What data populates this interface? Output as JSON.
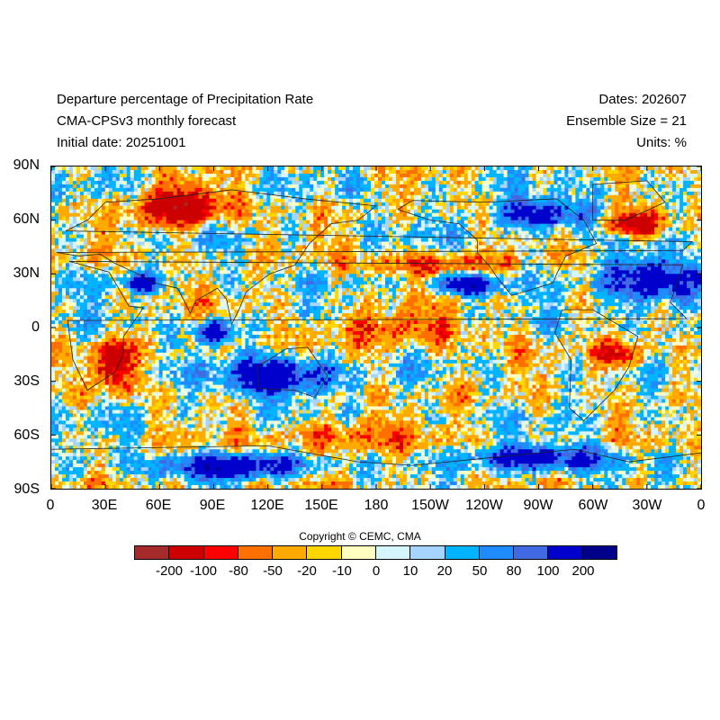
{
  "header": {
    "title": "Departure percentage of Precipitation Rate",
    "model": "CMA-CPSv3 monthly forecast",
    "initial_date": "Initial date: 20251001",
    "dates": "Dates: 202607",
    "ensemble": "Ensemble Size = 21",
    "units": "Units: %"
  },
  "map": {
    "projection": "cylindrical equidistant",
    "lon_range": [
      0,
      360
    ],
    "lat_range": [
      -90,
      90
    ],
    "y_ticks": [
      "90N",
      "60N",
      "30N",
      "0",
      "30S",
      "60S",
      "90S"
    ],
    "x_ticks": [
      "0",
      "30E",
      "60E",
      "90E",
      "120E",
      "150E",
      "180",
      "150W",
      "120W",
      "90W",
      "60W",
      "30W",
      "0"
    ]
  },
  "copyright": "Copyright © CEMC, CMA",
  "colorbar": {
    "colors": [
      "#a52a2a",
      "#cc0000",
      "#ff0000",
      "#ff7000",
      "#ffaa00",
      "#ffd700",
      "#ffffc0",
      "#d5f5ff",
      "#a5d5ff",
      "#00b4ff",
      "#1e8cff",
      "#4169e1",
      "#0000cd",
      "#00008b"
    ],
    "labels": [
      "-200",
      "-100",
      "-80",
      "-50",
      "-20",
      "-10",
      "0",
      "10",
      "20",
      "50",
      "80",
      "100",
      "200"
    ]
  },
  "chart_data": {
    "type": "heatmap",
    "variable": "Departure percentage of Precipitation Rate",
    "units": "%",
    "levels": [
      -200,
      -100,
      -80,
      -50,
      -20,
      -10,
      0,
      10,
      20,
      50,
      80,
      100,
      200
    ],
    "x": "longitude 0–360 (0, 30E ... 30W, 0)",
    "y": "latitude 90S–90N",
    "regions": [
      {
        "lon": [
          45,
          100
        ],
        "lat": [
          55,
          80
        ],
        "level": -100
      },
      {
        "lon": [
          25,
          45
        ],
        "lat": [
          -35,
          -5
        ],
        "level": -100
      },
      {
        "lon": [
          40,
          60
        ],
        "lat": [
          20,
          30
        ],
        "level": 100
      },
      {
        "lon": [
          80,
          100
        ],
        "lat": [
          -10,
          5
        ],
        "level": 100
      },
      {
        "lon": [
          95,
          160
        ],
        "lat": [
          -40,
          -15
        ],
        "level": 100
      },
      {
        "lon": [
          135,
          245
        ],
        "lat": [
          -10,
          8
        ],
        "level": -50
      },
      {
        "lon": [
          170,
          250
        ],
        "lat": [
          28,
          42
        ],
        "level": -50
      },
      {
        "lon": [
          210,
          250
        ],
        "lat": [
          18,
          30
        ],
        "level": 100
      },
      {
        "lon": [
          245,
          300
        ],
        "lat": [
          55,
          72
        ],
        "level": 100
      },
      {
        "lon": [
          305,
          345
        ],
        "lat": [
          50,
          65
        ],
        "level": -100
      },
      {
        "lon": [
          305,
          360
        ],
        "lat": [
          10,
          40
        ],
        "level": 100
      },
      {
        "lon": [
          300,
          330
        ],
        "lat": [
          -25,
          -5
        ],
        "level": -80
      },
      {
        "lon": [
          210,
          240
        ],
        "lat": [
          -45,
          -25
        ],
        "level": -20
      },
      {
        "lon": [
          120,
          200
        ],
        "lat": [
          -70,
          -50
        ],
        "level": -50
      },
      {
        "lon": [
          60,
          140
        ],
        "lat": [
          -85,
          -70
        ],
        "level": 100
      },
      {
        "lon": [
          225,
          320
        ],
        "lat": [
          -80,
          -65
        ],
        "level": 80
      }
    ]
  }
}
